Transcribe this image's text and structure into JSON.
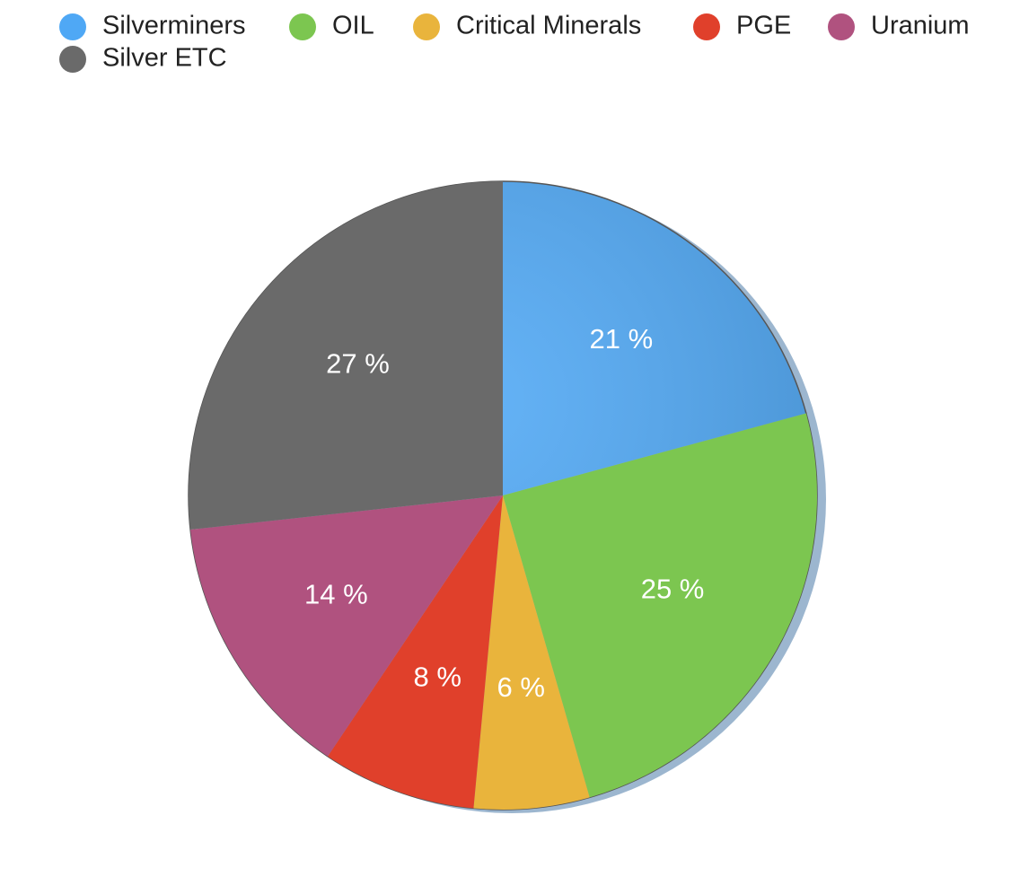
{
  "chart_data": {
    "type": "pie",
    "categories": [
      "Silverminers",
      "OIL",
      "Critical Minerals",
      "PGE",
      "Uranium",
      "Silver ETC"
    ],
    "values": [
      21,
      25,
      6,
      8,
      14,
      27
    ],
    "value_labels": [
      "21 %",
      "25 %",
      "6 %",
      "8 %",
      "14 %",
      "27 %"
    ],
    "colors": [
      "#4fa8f5",
      "#7cc650",
      "#e9b43c",
      "#e0402b",
      "#b0527f",
      "#6a6a6a"
    ],
    "legend": "top"
  }
}
